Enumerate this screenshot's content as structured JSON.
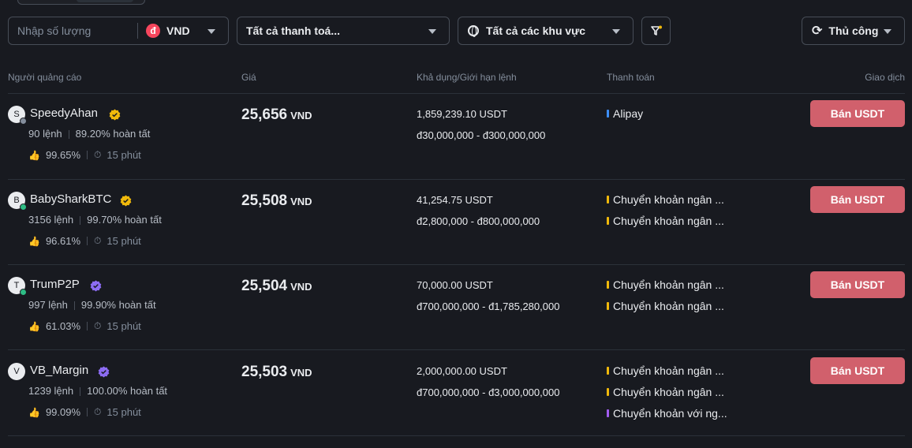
{
  "filters": {
    "amount_placeholder": "Nhập số lượng",
    "currency": "VND",
    "currency_symbol": "đ",
    "payment": "Tất cả thanh toá...",
    "region": "Tất cả các khu vực",
    "refresh_mode": "Thủ công"
  },
  "headers": {
    "advertiser": "Người quảng cáo",
    "price": "Giá",
    "available": "Khả dụng/Giới hạn lệnh",
    "payment": "Thanh toán",
    "trade": "Giao dịch"
  },
  "ads": [
    {
      "avatar": "S",
      "name": "SpeedyAhan",
      "badge": "gold",
      "status": "grey",
      "orders": "90 lệnh",
      "completion": "89.20% hoàn tất",
      "rating": "99.65%",
      "time": "15 phút",
      "price": "25,656",
      "unit": "VND",
      "available": "1,859,239.10 USDT",
      "limit": "đ30,000,000 - đ300,000,000",
      "payments": [
        {
          "label": "Alipay",
          "color": "#3d8ef7"
        }
      ],
      "action": "Bán USDT"
    },
    {
      "avatar": "B",
      "name": "BabySharkBTC",
      "badge": "gold",
      "status": "green",
      "orders": "3156 lệnh",
      "completion": "99.70% hoàn tất",
      "rating": "96.61%",
      "time": "15 phút",
      "price": "25,508",
      "unit": "VND",
      "available": "41,254.75 USDT",
      "limit": "đ2,800,000 - đ800,000,000",
      "payments": [
        {
          "label": "Chuyển khoản ngân ...",
          "color": "#f0b90b"
        },
        {
          "label": "Chuyển khoản ngân ...",
          "color": "#f0b90b"
        }
      ],
      "action": "Bán USDT"
    },
    {
      "avatar": "T",
      "name": "TrumP2P",
      "badge": "purple",
      "status": "green",
      "orders": "997 lệnh",
      "completion": "99.90% hoàn tất",
      "rating": "61.03%",
      "time": "15 phút",
      "price": "25,504",
      "unit": "VND",
      "available": "70,000.00 USDT",
      "limit": "đ700,000,000 - đ1,785,280,000",
      "payments": [
        {
          "label": "Chuyển khoản ngân ...",
          "color": "#f0b90b"
        },
        {
          "label": "Chuyển khoản ngân ...",
          "color": "#f0b90b"
        }
      ],
      "action": "Bán USDT"
    },
    {
      "avatar": "V",
      "name": "VB_Margin",
      "badge": "purple",
      "status": "none",
      "orders": "1239 lệnh",
      "completion": "100.00% hoàn tất",
      "rating": "99.09%",
      "time": "15 phút",
      "price": "25,503",
      "unit": "VND",
      "available": "2,000,000.00 USDT",
      "limit": "đ700,000,000 - đ3,000,000,000",
      "payments": [
        {
          "label": "Chuyển khoản ngân ...",
          "color": "#f0b90b"
        },
        {
          "label": "Chuyển khoản ngân ...",
          "color": "#f0b90b"
        },
        {
          "label": "Chuyển khoản với ng...",
          "color": "#a25cf0"
        }
      ],
      "action": "Bán USDT"
    }
  ],
  "colors": {
    "sell": "#d1606c",
    "gold_badge": "#f0b90b",
    "purple_badge": "#8c6cf2",
    "online": "#2ebd85"
  }
}
